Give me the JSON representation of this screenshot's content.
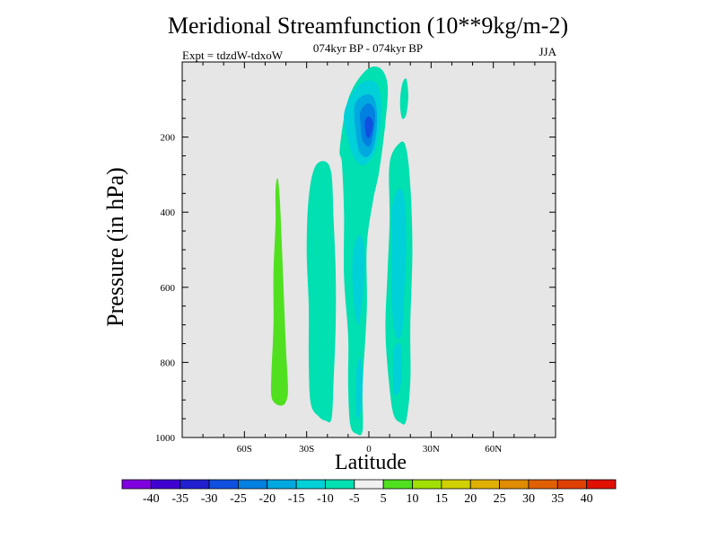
{
  "chart_data": {
    "type": "contour",
    "title": "Meridional Streamfunction (10**9kg/m-2)",
    "subtitle": "074kyr BP - 074kyr BP",
    "experiment": "Expt = tdzdW-tdxoW",
    "season": "JJA",
    "xlabel": "Latitude",
    "ylabel": "Pressure (in hPa)",
    "xlim": [
      -90,
      90
    ],
    "ylim": [
      1000,
      0
    ],
    "xticks": [
      {
        "value": -60,
        "label": "60S"
      },
      {
        "value": -30,
        "label": "30S"
      },
      {
        "value": 0,
        "label": "0"
      },
      {
        "value": 30,
        "label": "30N"
      },
      {
        "value": 60,
        "label": "60N"
      }
    ],
    "yticks": [
      {
        "value": 200,
        "label": "200"
      },
      {
        "value": 400,
        "label": "400"
      },
      {
        "value": 600,
        "label": "600"
      },
      {
        "value": 800,
        "label": "800"
      },
      {
        "value": 1000,
        "label": "1000"
      }
    ],
    "background_color": "#e6e6e6",
    "colorbar": {
      "levels": [
        "-40",
        "-35",
        "-30",
        "-25",
        "-20",
        "-15",
        "-10",
        "-5",
        "5",
        "10",
        "15",
        "20",
        "25",
        "30",
        "35",
        "40"
      ],
      "colors": [
        "#8000e0",
        "#4000d0",
        "#2020d0",
        "#1050e0",
        "#0080e0",
        "#00a8e0",
        "#00d0d8",
        "#00e0b0",
        "#f0f0f0",
        "#50e020",
        "#a0e000",
        "#d0d000",
        "#e0b000",
        "#e08c00",
        "#e06000",
        "#e04000",
        "#e01000"
      ]
    },
    "regions": [
      {
        "name": "sh-midlat-positive-cell",
        "level": "5 to 10",
        "points": [
          [
            -44,
            310
          ],
          [
            -43,
            360
          ],
          [
            -42,
            480
          ],
          [
            -41,
            620
          ],
          [
            -40,
            760
          ],
          [
            -39,
            870
          ],
          [
            -40,
            905
          ],
          [
            -42,
            915
          ],
          [
            -45,
            910
          ],
          [
            -47,
            890
          ],
          [
            -47,
            830
          ],
          [
            -46,
            700
          ],
          [
            -46,
            560
          ],
          [
            -45,
            430
          ],
          [
            -45,
            340
          ]
        ]
      },
      {
        "name": "sh-subtropical-negative-cell",
        "level": "-10 to -5",
        "points": [
          [
            -26,
            280
          ],
          [
            -21,
            265
          ],
          [
            -18,
            300
          ],
          [
            -17,
            420
          ],
          [
            -16,
            560
          ],
          [
            -16,
            700
          ],
          [
            -17,
            850
          ],
          [
            -18,
            950
          ],
          [
            -21,
            955
          ],
          [
            -24,
            945
          ],
          [
            -28,
            910
          ],
          [
            -29,
            800
          ],
          [
            -29,
            650
          ],
          [
            -30,
            500
          ],
          [
            -29,
            360
          ]
        ]
      },
      {
        "name": "equatorial-negative-column",
        "level": "-10 to -5",
        "points": [
          [
            -14,
            230
          ],
          [
            -10,
            100
          ],
          [
            -2,
            25
          ],
          [
            5,
            15
          ],
          [
            9,
            60
          ],
          [
            8,
            160
          ],
          [
            5,
            290
          ],
          [
            2,
            370
          ],
          [
            -1,
            490
          ],
          [
            -1,
            660
          ],
          [
            -3,
            860
          ],
          [
            -3,
            980
          ],
          [
            -6,
            990
          ],
          [
            -9,
            965
          ],
          [
            -10,
            860
          ],
          [
            -10,
            730
          ],
          [
            -12,
            570
          ],
          [
            -12,
            400
          ],
          [
            -13,
            270
          ]
        ]
      },
      {
        "name": "equatorial-core-outer",
        "level": "-15 to -10",
        "points": [
          [
            -12,
            140
          ],
          [
            -7,
            75
          ],
          [
            -1,
            50
          ],
          [
            4,
            60
          ],
          [
            6,
            110
          ],
          [
            5,
            190
          ],
          [
            2,
            250
          ],
          [
            -3,
            275
          ],
          [
            -7,
            255
          ],
          [
            -10,
            210
          ]
        ]
      },
      {
        "name": "equatorial-core-mid",
        "level": "-20 to -15",
        "points": [
          [
            -7,
            120
          ],
          [
            -3,
            90
          ],
          [
            2,
            92
          ],
          [
            4,
            140
          ],
          [
            3,
            210
          ],
          [
            0,
            250
          ],
          [
            -4,
            245
          ],
          [
            -6,
            200
          ]
        ]
      },
      {
        "name": "equatorial-core-inner",
        "level": "-25 to -20",
        "points": [
          [
            -4,
            130
          ],
          [
            0,
            110
          ],
          [
            3,
            135
          ],
          [
            2,
            195
          ],
          [
            0,
            225
          ],
          [
            -3,
            210
          ],
          [
            -4,
            170
          ]
        ]
      },
      {
        "name": "equatorial-core-peak",
        "level": "-30 to -25",
        "points": [
          [
            -2,
            160
          ],
          [
            0,
            145
          ],
          [
            2,
            162
          ],
          [
            1,
            195
          ],
          [
            -1,
            200
          ]
        ]
      },
      {
        "name": "equatorial-lower-blob",
        "level": "-15 to -10",
        "points": [
          [
            -7,
            490
          ],
          [
            -4,
            460
          ],
          [
            -2,
            520
          ],
          [
            -3,
            620
          ],
          [
            -5,
            700
          ],
          [
            -7,
            650
          ],
          [
            -8,
            560
          ]
        ]
      },
      {
        "name": "equatorial-surface-blob",
        "level": "-15 to -10",
        "points": [
          [
            -6,
            820
          ],
          [
            -4,
            790
          ],
          [
            -3,
            850
          ],
          [
            -4,
            930
          ],
          [
            -6,
            940
          ]
        ]
      },
      {
        "name": "nh-negative-cell-outer",
        "level": "-10 to -5",
        "points": [
          [
            10,
            270
          ],
          [
            15,
            215
          ],
          [
            18,
            230
          ],
          [
            20,
            330
          ],
          [
            21,
            500
          ],
          [
            20,
            700
          ],
          [
            20,
            850
          ],
          [
            18,
            955
          ],
          [
            15,
            960
          ],
          [
            12,
            940
          ],
          [
            10,
            870
          ],
          [
            8,
            720
          ],
          [
            9,
            560
          ],
          [
            10,
            420
          ]
        ]
      },
      {
        "name": "nh-negative-cell-inner",
        "level": "-15 to -10",
        "points": [
          [
            11,
            400
          ],
          [
            14,
            340
          ],
          [
            17,
            360
          ],
          [
            18,
            480
          ],
          [
            17,
            620
          ],
          [
            16,
            720
          ],
          [
            13,
            730
          ],
          [
            11,
            640
          ],
          [
            11,
            520
          ]
        ]
      },
      {
        "name": "nh-negative-cell-lower",
        "level": "-15 to -10",
        "points": [
          [
            12,
            770
          ],
          [
            15,
            750
          ],
          [
            16,
            800
          ],
          [
            15,
            870
          ],
          [
            12,
            880
          ]
        ]
      },
      {
        "name": "nh-upper-streak",
        "level": "-10 to -5",
        "points": [
          [
            16,
            60
          ],
          [
            18,
            45
          ],
          [
            19,
            90
          ],
          [
            18,
            140
          ],
          [
            16,
            150
          ],
          [
            15,
            110
          ]
        ]
      }
    ]
  }
}
